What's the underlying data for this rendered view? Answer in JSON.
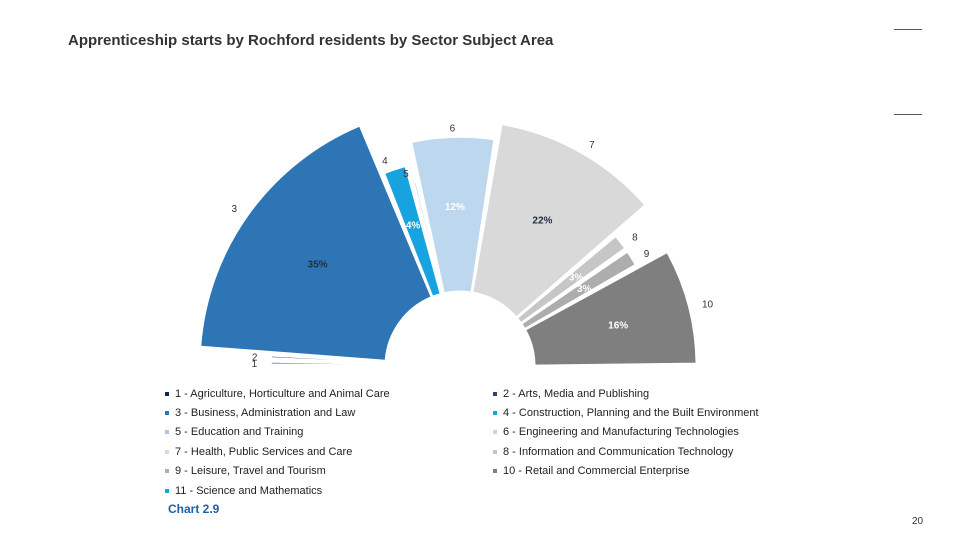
{
  "page": {
    "title": "Apprenticeship starts by Rochford residents by Sector Subject Area",
    "caption": "Chart 2.9",
    "page_number": "20"
  },
  "chart_data": {
    "type": "pie",
    "variant": "half-donut",
    "title": "Apprenticeship starts by Rochford residents by Sector Subject Area",
    "units": "percent",
    "slices": [
      {
        "id": "1",
        "name": "1 - Agriculture, Horticulture and Animal Care",
        "value": 1,
        "color": "#0b2a52",
        "label": "",
        "legend_label": "1 - Agriculture, Horticulture and Animal Care"
      },
      {
        "id": "2",
        "name": "2 - Arts, Media and Publishing",
        "value": 1,
        "color": "#27476e",
        "label": "",
        "legend_label": "2 - Arts, Media and Publishing"
      },
      {
        "id": "3",
        "name": "3 - Business, Administration and Law",
        "value": 35,
        "color": "#2e75b6",
        "label": "35%",
        "legend_label": "3 - Business, Administration and Law"
      },
      {
        "id": "4",
        "name": "4 - Construction, Planning and the Built Environment",
        "value": 4,
        "color": "#17a2e0",
        "label": "4%",
        "legend_label": "4 - Construction, Planning and the Built Environment"
      },
      {
        "id": "5",
        "name": "5 - Education and Training",
        "value": 1,
        "color": "#a9c8e8",
        "label": "",
        "legend_label": "5 - Education and Training"
      },
      {
        "id": "6",
        "name": "6 - Engineering and Manufacturing Technologies",
        "value": 12,
        "color": "#bdd7ee",
        "label": "12%",
        "legend_label": "6 - Engineering and Manufacturing Technologies"
      },
      {
        "id": "7",
        "name": "7 - Health, Public Services and Care",
        "value": 22,
        "color": "#d9d9d9",
        "label": "22%",
        "legend_label": "7 - Health, Public Services and Care"
      },
      {
        "id": "8",
        "name": "8 - Information and Communication Technology",
        "value": 3,
        "color": "#c6c6c6",
        "label": "3%",
        "legend_label": "8 - Information and Communication Technology"
      },
      {
        "id": "9",
        "name": "9 - Leisure, Travel and Tourism",
        "value": 3,
        "color": "#adadad",
        "label": "3%",
        "legend_label": "9 - Leisure, Travel and Tourism"
      },
      {
        "id": "10",
        "name": "10 - Retail and Commercial Enterprise",
        "value": 16,
        "color": "#7f7f7f",
        "label": "16%",
        "legend_label": "10 - Retail and Commercial Enterprise"
      },
      {
        "id": "11",
        "name": "11 - Science and Mathematics",
        "value": 0,
        "color": "#17a2e0",
        "label": "",
        "legend_label": "11 - Science and Mathematics"
      }
    ],
    "legend_order": [
      "1",
      "2",
      "3",
      "4",
      "5",
      "6",
      "7",
      "8",
      "9",
      "10",
      "11"
    ]
  }
}
